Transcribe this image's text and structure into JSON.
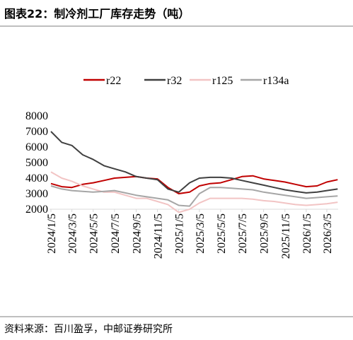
{
  "chart_data": {
    "type": "line",
    "title": "图表22：制冷剂工厂库存走势（吨）",
    "source": "资料来源：百川盈孚，中邮证券研究所",
    "x": [
      "2024/1/5",
      "2024/2/5",
      "2024/3/5",
      "2024/4/5",
      "2024/5/5",
      "2024/6/5",
      "2024/7/5",
      "2024/8/5",
      "2024/9/5",
      "2024/10/5",
      "2024/11/5",
      "2024/12/5",
      "2025/1/5",
      "2025/2/5",
      "2025/3/5",
      "2025/4/5",
      "2025/5/5",
      "2025/6/5",
      "2025/7/5",
      "2025/8/5",
      "2025/9/5",
      "2025/10/5",
      "2025/11/5",
      "2025/12/5",
      "2026/1/5",
      "2026/2/5",
      "2026/3/5",
      "2026/4/5"
    ],
    "series": [
      {
        "name": "r22",
        "color": "#c00000",
        "values": [
          3650,
          3450,
          3400,
          3600,
          3700,
          3850,
          4000,
          4050,
          4100,
          4000,
          3950,
          3400,
          3000,
          3100,
          3500,
          3650,
          3700,
          3900,
          4100,
          4150,
          3950,
          3850,
          3750,
          3600,
          3450,
          3500,
          3750,
          3900
        ]
      },
      {
        "name": "r32",
        "color": "#404040",
        "values": [
          7000,
          6300,
          6100,
          5500,
          5200,
          4800,
          4600,
          4400,
          4100,
          4000,
          3900,
          3300,
          3100,
          3700,
          4000,
          4050,
          4050,
          4000,
          3850,
          3700,
          3550,
          3400,
          3250,
          3150,
          3050,
          3100,
          3200,
          3300
        ]
      },
      {
        "name": "r125",
        "color": "#f2c4c4",
        "values": [
          4400,
          4000,
          3800,
          3500,
          3300,
          3100,
          3100,
          2900,
          2700,
          2700,
          2500,
          2300,
          1800,
          2000,
          2400,
          2700,
          2700,
          2700,
          2700,
          2650,
          2550,
          2500,
          2400,
          2300,
          2250,
          2300,
          2350,
          2450
        ]
      },
      {
        "name": "r134a",
        "color": "#a6a6a6",
        "values": [
          3500,
          3300,
          3200,
          3150,
          3100,
          3150,
          3200,
          3050,
          2900,
          2800,
          2700,
          2600,
          2250,
          2200,
          3000,
          3400,
          3400,
          3350,
          3300,
          3250,
          3100,
          3000,
          2900,
          2800,
          2700,
          2750,
          2800,
          2850
        ]
      }
    ],
    "xticks": [
      "2024/1/5",
      "2024/3/5",
      "2024/5/5",
      "2024/7/5",
      "2024/9/5",
      "2024/11/5",
      "2025/1/5",
      "2025/3/5",
      "2025/5/5",
      "2025/7/5",
      "2025/9/5",
      "2025/11/5",
      "2026/1/5",
      "2026/3/5"
    ],
    "ylim": [
      2000,
      8000
    ],
    "yticks": [
      2000,
      3000,
      4000,
      5000,
      6000,
      7000,
      8000
    ],
    "legend": "top",
    "grid": false
  }
}
